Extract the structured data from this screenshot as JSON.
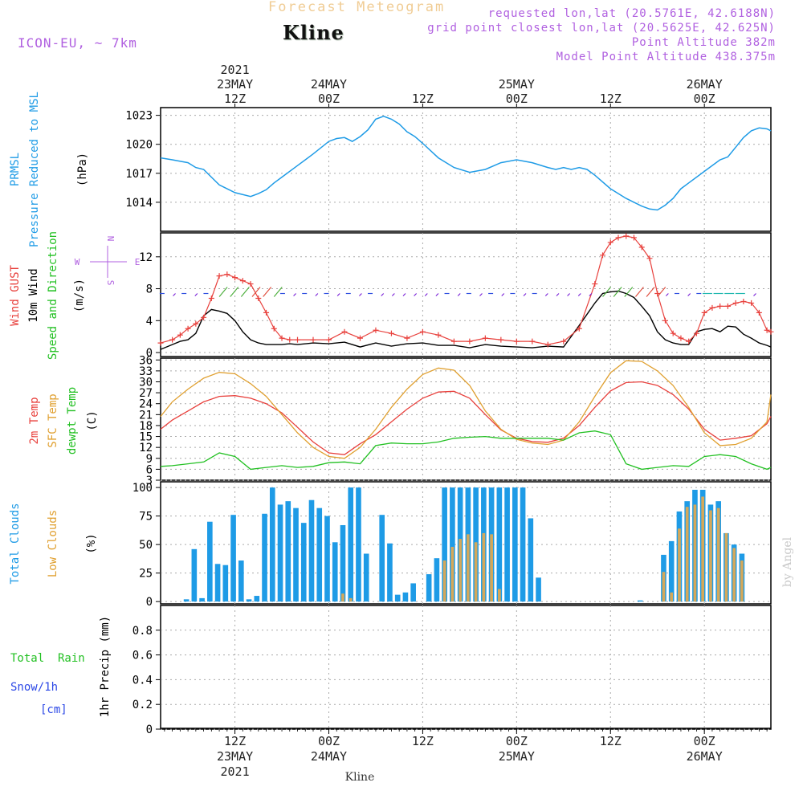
{
  "header": {
    "top_title": "Forecast Meteogram",
    "station": "Kline",
    "model": "ICON-EU, ~ 7km",
    "requested": "requested lon,lat (20.5761E, 42.6188N)",
    "grid_point": "grid point closest lon,lat (20.5625E, 42.625N)",
    "point_altitude": "Point Altitude 382m",
    "model_altitude": "Model Point Altitude 438.375m",
    "credit": "by Angel",
    "footer_station": "Kline"
  },
  "time_axis": {
    "top_year": "2021",
    "top_labels": [
      {
        "hour": 12,
        "line1": "23MAY",
        "line2": "12Z"
      },
      {
        "hour": 24,
        "line1": "24MAY",
        "line2": "00Z"
      },
      {
        "hour": 36,
        "line1": "",
        "line2": "12Z"
      },
      {
        "hour": 48,
        "line1": "25MAY",
        "line2": "00Z"
      },
      {
        "hour": 60,
        "line1": "",
        "line2": "12Z"
      },
      {
        "hour": 72,
        "line1": "26MAY",
        "line2": "00Z"
      }
    ],
    "bottom_labels": [
      {
        "hour": 12,
        "line1": "12Z",
        "line2": "23MAY",
        "line3": "2021"
      },
      {
        "hour": 24,
        "line1": "00Z",
        "line2": "24MAY",
        "line3": ""
      },
      {
        "hour": 36,
        "line1": "12Z",
        "line2": "",
        "line3": ""
      },
      {
        "hour": 48,
        "line1": "00Z",
        "line2": "25MAY",
        "line3": ""
      },
      {
        "hour": 60,
        "line1": "12Z",
        "line2": "",
        "line3": ""
      },
      {
        "hour": 72,
        "line1": "00Z",
        "line2": "26MAY",
        "line3": ""
      }
    ]
  },
  "panel_labels": {
    "pressure": {
      "l1": "PRMSL",
      "l2": "Pressure Reduced to MSL",
      "unit": "(hPa)"
    },
    "wind": {
      "l1": "Wind GUST",
      "l2": "10m Wind",
      "l3": "Speed and Direction",
      "unit": "(m/s)"
    },
    "compass": {
      "n": "N",
      "s": "S",
      "w": "W",
      "e": "E"
    },
    "temp": {
      "l1": "2m Temp",
      "l2": "SFC Temp",
      "l3": "dewpt Temp",
      "unit": "(C)"
    },
    "clouds": {
      "l1": "Total Clouds",
      "l2": "Low Clouds",
      "unit": "(%)"
    },
    "precip": {
      "rain": "Total  Rain",
      "snow": "Snow/1h",
      "snow_unit": "[cm]",
      "ylabel": "1hr Precip (mm)"
    }
  },
  "colors": {
    "pressure": "#1e9be6",
    "gust": "#e8403c",
    "wind": "#000000",
    "temp2m": "#e8403c",
    "sfc": "#e0a030",
    "dewpt": "#22c022",
    "total_clouds": "#1e9be6",
    "low_clouds": "#d4a85a",
    "purple": "#b060e0",
    "rain": "#22c022",
    "snow": "#2c48e6"
  },
  "chart_data": [
    {
      "type": "line",
      "name": "PRMSL",
      "time_range_hours": [
        2.5,
        80.5
      ],
      "ylim": [
        1011,
        1023.8
      ],
      "yticks": [
        1014,
        1017,
        1020,
        1023
      ],
      "x": [
        2.5,
        4,
        6,
        7,
        8,
        9,
        10,
        11,
        12,
        14,
        15,
        16,
        17,
        18,
        20,
        22,
        24,
        25,
        26,
        27,
        28,
        29,
        30,
        31,
        32,
        33,
        34,
        35,
        36,
        38,
        40,
        42,
        44,
        46,
        48,
        50,
        52,
        53,
        54,
        55,
        56,
        57,
        58,
        60,
        62,
        64,
        65,
        66,
        67,
        68,
        69,
        70,
        72,
        74,
        75,
        76,
        77,
        78,
        79,
        80,
        80.5
      ],
      "series": [
        {
          "name": "PRMSL",
          "values": [
            1018.6,
            1018.4,
            1018.1,
            1017.6,
            1017.4,
            1016.6,
            1015.8,
            1015.4,
            1015.0,
            1014.6,
            1014.9,
            1015.3,
            1016.0,
            1016.6,
            1017.8,
            1019.0,
            1020.3,
            1020.6,
            1020.7,
            1020.3,
            1020.8,
            1021.5,
            1022.6,
            1022.9,
            1022.6,
            1022.1,
            1021.3,
            1020.8,
            1020.1,
            1018.6,
            1017.6,
            1017.1,
            1017.4,
            1018.1,
            1018.4,
            1018.1,
            1017.6,
            1017.4,
            1017.6,
            1017.4,
            1017.6,
            1017.4,
            1016.8,
            1015.4,
            1014.4,
            1013.6,
            1013.3,
            1013.2,
            1013.7,
            1014.4,
            1015.4,
            1016.0,
            1017.2,
            1018.4,
            1018.7,
            1019.7,
            1020.7,
            1021.4,
            1021.7,
            1021.6,
            1021.4
          ]
        }
      ]
    },
    {
      "type": "line",
      "name": "wind",
      "ylim": [
        -0.5,
        15
      ],
      "yticks": [
        0,
        4,
        8,
        12
      ],
      "x": [
        2.5,
        4,
        5,
        6,
        7,
        8,
        9,
        10,
        11,
        12,
        13,
        14,
        15,
        16,
        17,
        18,
        19,
        20,
        22,
        24,
        26,
        28,
        30,
        32,
        34,
        36,
        38,
        40,
        42,
        44,
        46,
        48,
        50,
        52,
        54,
        56,
        58,
        59,
        60,
        61,
        62,
        63,
        64,
        65,
        66,
        67,
        68,
        69,
        70,
        71,
        72,
        73,
        74,
        75,
        76,
        77,
        78,
        79,
        80,
        80.5
      ],
      "series": [
        {
          "name": "Wind GUST",
          "values": [
            1.2,
            1.6,
            2.2,
            3.0,
            3.6,
            4.4,
            6.8,
            9.6,
            9.8,
            9.4,
            9.0,
            8.6,
            6.8,
            5.0,
            3.0,
            1.8,
            1.6,
            1.6,
            1.6,
            1.6,
            2.6,
            1.8,
            2.8,
            2.4,
            1.8,
            2.6,
            2.2,
            1.4,
            1.4,
            1.8,
            1.6,
            1.4,
            1.4,
            1.0,
            1.4,
            3.0,
            8.6,
            12.2,
            13.8,
            14.4,
            14.6,
            14.4,
            13.2,
            11.8,
            7.4,
            4.0,
            2.4,
            1.8,
            1.4,
            2.4,
            5.0,
            5.6,
            5.8,
            5.8,
            6.2,
            6.4,
            6.2,
            5.0,
            2.8,
            2.6
          ]
        },
        {
          "name": "10m Wind",
          "values": [
            0.4,
            1.0,
            1.4,
            1.6,
            2.4,
            4.6,
            5.4,
            5.2,
            4.9,
            4.0,
            2.6,
            1.6,
            1.2,
            1.0,
            1.0,
            1.0,
            1.1,
            1.0,
            1.2,
            1.1,
            1.3,
            0.7,
            1.2,
            0.8,
            1.1,
            1.2,
            0.9,
            0.9,
            0.6,
            1.0,
            0.8,
            0.7,
            0.6,
            0.8,
            0.7,
            3.4,
            6.2,
            7.4,
            7.6,
            7.7,
            7.4,
            6.9,
            5.8,
            4.6,
            2.6,
            1.6,
            1.2,
            1.0,
            1.0,
            2.6,
            2.9,
            3.0,
            2.6,
            3.3,
            3.2,
            2.3,
            1.8,
            1.2,
            0.9,
            0.7
          ]
        }
      ]
    },
    {
      "type": "line",
      "name": "temperature",
      "ylim": [
        3,
        36.5
      ],
      "yticks": [
        3,
        6,
        9,
        12,
        15,
        18,
        21,
        24,
        27,
        30,
        33,
        36
      ],
      "x": [
        2.5,
        4,
        6,
        8,
        10,
        12,
        14,
        16,
        18,
        20,
        22,
        24,
        26,
        28,
        30,
        32,
        34,
        36,
        38,
        40,
        42,
        44,
        46,
        48,
        50,
        52,
        54,
        56,
        58,
        60,
        62,
        64,
        66,
        68,
        70,
        72,
        74,
        76,
        78,
        80,
        80.5
      ],
      "series": [
        {
          "name": "2m Temp",
          "values": [
            17,
            19.5,
            22,
            24.5,
            26,
            26.2,
            25.5,
            24,
            21.5,
            17.5,
            13.5,
            10.5,
            10,
            13,
            15.5,
            19,
            22.5,
            25.5,
            27.2,
            27.4,
            25.5,
            21,
            16.8,
            14.5,
            13.6,
            13.4,
            14.5,
            18,
            23,
            27.5,
            29.8,
            30,
            29,
            26.5,
            22.5,
            17,
            14,
            14.5,
            15.2,
            18.5,
            20.5
          ]
        },
        {
          "name": "SFC Temp",
          "values": [
            20.5,
            24.5,
            28,
            31,
            32.6,
            32.2,
            29.5,
            26,
            21,
            16,
            12,
            9.5,
            9,
            12,
            17,
            23,
            28,
            32,
            33.8,
            33.2,
            29,
            22,
            17,
            14.2,
            13.2,
            12.8,
            14,
            19,
            26,
            32.5,
            35.8,
            35.6,
            33,
            29,
            23,
            16,
            12.5,
            12.8,
            14.5,
            19,
            26.5
          ]
        },
        {
          "name": "dewpt Temp",
          "values": [
            6.8,
            7,
            7.5,
            8,
            10.5,
            9.5,
            6,
            6.5,
            7,
            6.5,
            6.8,
            7.8,
            8,
            7.5,
            12.5,
            13.2,
            13,
            13,
            13.5,
            14.5,
            14.8,
            15,
            14.5,
            14.5,
            14.5,
            14.5,
            14,
            16,
            16.5,
            15.5,
            7.5,
            6,
            6.5,
            7,
            6.8,
            9.5,
            10,
            9.5,
            7.5,
            6,
            6.5
          ]
        }
      ]
    },
    {
      "type": "bar",
      "name": "clouds",
      "ylim": [
        -2,
        105
      ],
      "yticks": [
        0,
        25,
        50,
        75,
        100
      ],
      "x": [
        1,
        2,
        3,
        4,
        5,
        6,
        7,
        8,
        9,
        10,
        11,
        12,
        13,
        14,
        15,
        16,
        17,
        18,
        19,
        20,
        21,
        22,
        23,
        24,
        25,
        26,
        27,
        28,
        29,
        30,
        31,
        32,
        33,
        34,
        35,
        36,
        37,
        38,
        39,
        40,
        41,
        42,
        43,
        44,
        45,
        46,
        47,
        48,
        49,
        50,
        51,
        52,
        53,
        54,
        55,
        56,
        57,
        58,
        59,
        60,
        61,
        62,
        63,
        64,
        65,
        66,
        67,
        68,
        69,
        70,
        71,
        72,
        73,
        74,
        75,
        76,
        77,
        78,
        79,
        80
      ],
      "series": [
        {
          "name": "Total Clouds",
          "values": [
            0,
            0,
            0,
            0,
            0,
            2,
            46,
            3,
            70,
            33,
            32,
            76,
            36,
            2,
            5,
            77,
            100,
            85,
            88,
            82,
            69,
            89,
            82,
            75,
            52,
            67,
            100,
            100,
            42,
            0,
            76,
            51,
            6,
            8,
            16,
            0,
            24,
            38,
            100,
            100,
            100,
            100,
            100,
            100,
            100,
            100,
            100,
            100,
            100,
            73,
            21,
            0,
            0,
            0,
            0,
            0,
            0,
            0,
            0,
            0,
            0,
            0,
            0,
            1,
            0,
            0,
            41,
            53,
            79,
            88,
            98,
            98,
            85,
            88,
            60,
            50,
            42,
            0,
            0,
            0
          ]
        },
        {
          "name": "Low Clouds",
          "values": [
            0,
            0,
            0,
            0,
            0,
            0,
            0,
            0,
            0,
            0,
            0,
            0,
            0,
            0,
            0,
            0,
            0,
            0,
            0,
            0,
            0,
            0,
            0,
            0,
            0,
            7,
            3,
            0,
            0,
            0,
            0,
            0,
            0,
            0,
            0,
            0,
            0,
            0,
            36,
            48,
            55,
            59,
            52,
            60,
            59,
            11,
            0,
            0,
            0,
            0,
            0,
            0,
            0,
            0,
            0,
            0,
            0,
            0,
            0,
            0,
            0,
            0,
            0,
            0,
            0,
            0,
            26,
            8,
            64,
            83,
            85,
            92,
            80,
            82,
            60,
            47,
            36,
            0,
            0,
            0
          ]
        }
      ]
    },
    {
      "type": "bar",
      "name": "precipitation",
      "ylim": [
        0,
        1
      ],
      "yticks": [
        0,
        0.2,
        0.4,
        0.6,
        0.8
      ],
      "ytick_labels": [
        "0",
        "0.2",
        "0.4",
        "0.6",
        "0.8"
      ],
      "ylabel": "1hr Precip (mm)",
      "series": [
        {
          "name": "Total Rain",
          "values": []
        }
      ]
    }
  ]
}
